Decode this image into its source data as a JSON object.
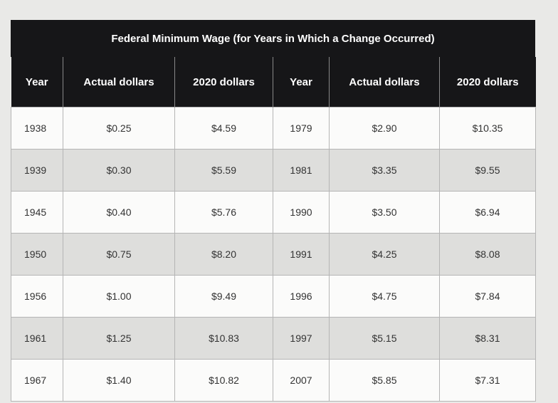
{
  "header": {
    "title": "Federal Minimum Wage (for Years in Which a Change Occurred)"
  },
  "table": {
    "columns": [
      "Year",
      "Actual dollars",
      "2020 dollars",
      "Year",
      "Actual dollars",
      "2020 dollars"
    ],
    "rows": [
      [
        "1938",
        "$0.25",
        "$4.59",
        "1979",
        "$2.90",
        "$10.35"
      ],
      [
        "1939",
        "$0.30",
        "$5.59",
        "1981",
        "$3.35",
        "$9.55"
      ],
      [
        "1945",
        "$0.40",
        "$5.76",
        "1990",
        "$3.50",
        "$6.94"
      ],
      [
        "1950",
        "$0.75",
        "$8.20",
        "1991",
        "$4.25",
        "$8.08"
      ],
      [
        "1956",
        "$1.00",
        "$9.49",
        "1996",
        "$4.75",
        "$7.84"
      ],
      [
        "1961",
        "$1.25",
        "$10.83",
        "1997",
        "$5.15",
        "$8.31"
      ],
      [
        "1967",
        "$1.40",
        "$10.82",
        "2007",
        "$5.85",
        "$7.31"
      ]
    ]
  }
}
